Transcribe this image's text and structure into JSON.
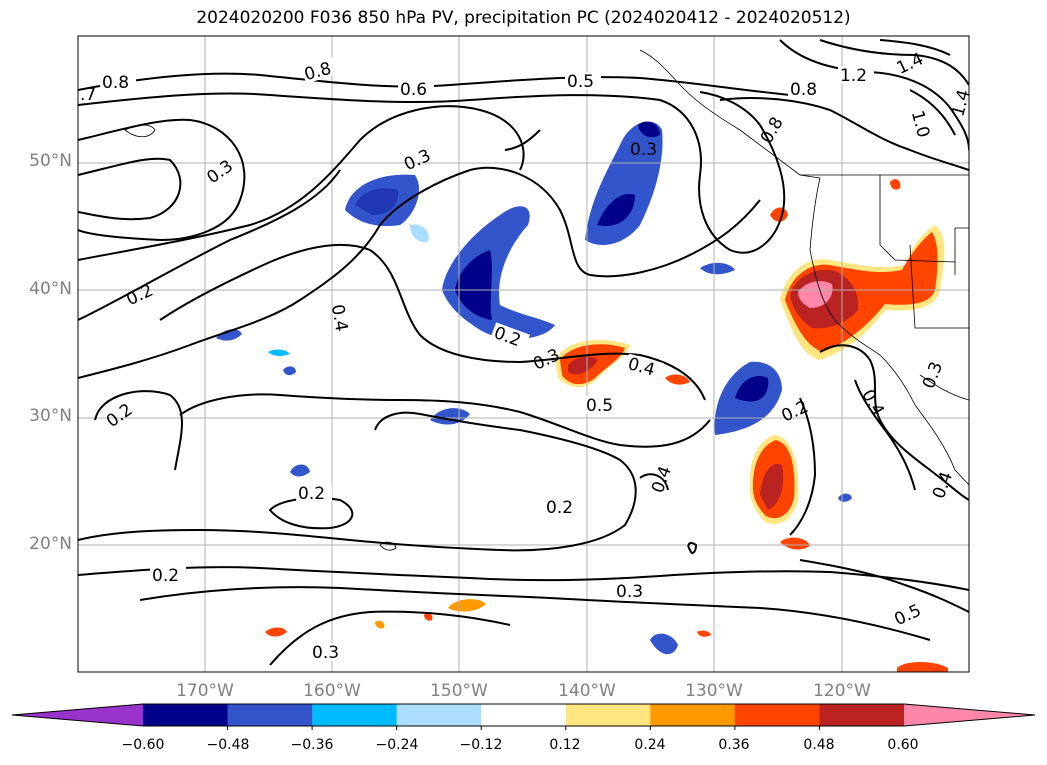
{
  "title": "2024020200 F036 850 hPa PV, precipitation PC (2024020412 - 2024020512)",
  "lat_labels": [
    "50°N",
    "40°N",
    "30°N",
    "20°N"
  ],
  "lon_labels": [
    "170°W",
    "160°W",
    "150°W",
    "140°W",
    "130°W",
    "120°W"
  ],
  "colorbar": {
    "ticks": [
      "−0.60",
      "−0.48",
      "−0.36",
      "−0.24",
      "−0.12",
      "0.12",
      "0.24",
      "0.36",
      "0.48",
      "0.60"
    ],
    "colors": [
      "#9933cc",
      "#000088",
      "#3355cc",
      "#00bbff",
      "#aaddff",
      "#ffffff",
      "#ffe680",
      "#ff9900",
      "#ff4400",
      "#bb2222",
      "#ff88aa"
    ],
    "extend": "both"
  },
  "contour_labels": [
    {
      "text": "0.8"
    },
    {
      "text": "0.8"
    },
    {
      "text": "0.6"
    },
    {
      "text": "0.5"
    },
    {
      "text": "1.2"
    },
    {
      "text": "1.4"
    },
    {
      "text": "1.0"
    },
    {
      "text": "1.4"
    },
    {
      "text": "0.8"
    },
    {
      "text": "0.8"
    },
    {
      "text": "0.3"
    },
    {
      "text": "0.3"
    },
    {
      "text": "0.3"
    },
    {
      "text": "0.2"
    },
    {
      "text": "0.4"
    },
    {
      "text": "0.2"
    },
    {
      "text": "0.3"
    },
    {
      "text": "0.4"
    },
    {
      "text": "0.5"
    },
    {
      "text": "0.2"
    },
    {
      "text": "0.4"
    },
    {
      "text": "0.3"
    },
    {
      "text": "0.2"
    },
    {
      "text": "0.4"
    },
    {
      "text": "0.2"
    },
    {
      "text": "0.4"
    },
    {
      "text": "0.2"
    },
    {
      "text": "0.3"
    },
    {
      "text": "0.2"
    },
    {
      "text": "0.3"
    },
    {
      "text": ".7"
    },
    {
      "text": "0.5"
    }
  ]
}
